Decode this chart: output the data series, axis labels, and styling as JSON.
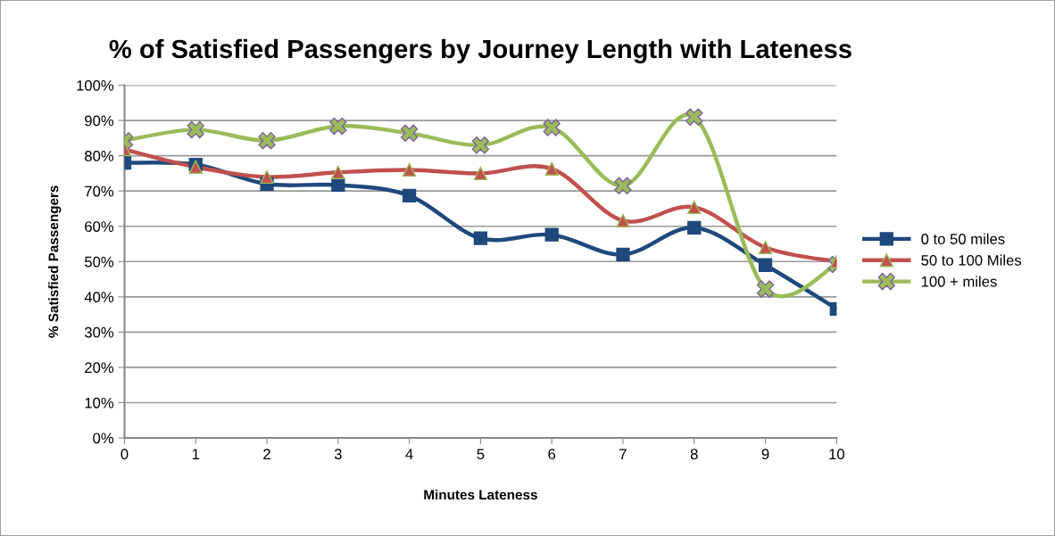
{
  "chart_data": {
    "type": "line",
    "title": "% of Satisfied Passengers by Journey Length with Lateness",
    "xlabel": "Minutes Lateness",
    "ylabel": "% Satisfied Passengers",
    "categories": [
      "0",
      "1",
      "2",
      "3",
      "4",
      "5",
      "6",
      "7",
      "8",
      "9",
      "10"
    ],
    "series": [
      {
        "name": "0 to 50 miles",
        "color": "#1f497d",
        "marker": "square",
        "values": [
          78,
          77.5,
          72,
          71.7,
          68.7,
          56.6,
          57.6,
          52,
          59.6,
          49,
          36.6
        ]
      },
      {
        "name": "50 to 100 Miles",
        "color": "#c0504d",
        "marker": "triangle",
        "values": [
          81.8,
          76.8,
          74,
          75.3,
          76,
          75,
          76.3,
          61.6,
          65.4,
          54,
          50
        ]
      },
      {
        "name": "100 + miles",
        "color": "#9bbb59",
        "marker": "cross",
        "values": [
          84.3,
          87.4,
          84.3,
          88.4,
          86.4,
          83,
          88,
          71.5,
          91,
          42.2,
          49.2
        ]
      }
    ],
    "ylim": [
      0,
      100
    ],
    "yticks": [
      {
        "value": 0,
        "label": "0%"
      },
      {
        "value": 10,
        "label": "10%"
      },
      {
        "value": 20,
        "label": "20%"
      },
      {
        "value": 30,
        "label": "30%"
      },
      {
        "value": 40,
        "label": "40%"
      },
      {
        "value": 50,
        "label": "50%"
      },
      {
        "value": 60,
        "label": "60%"
      },
      {
        "value": 70,
        "label": "70%"
      },
      {
        "value": 80,
        "label": "80%"
      },
      {
        "value": 90,
        "label": "90%"
      },
      {
        "value": 100,
        "label": "100%"
      }
    ],
    "grid": "y",
    "legend": "right",
    "line_style": "solid"
  }
}
